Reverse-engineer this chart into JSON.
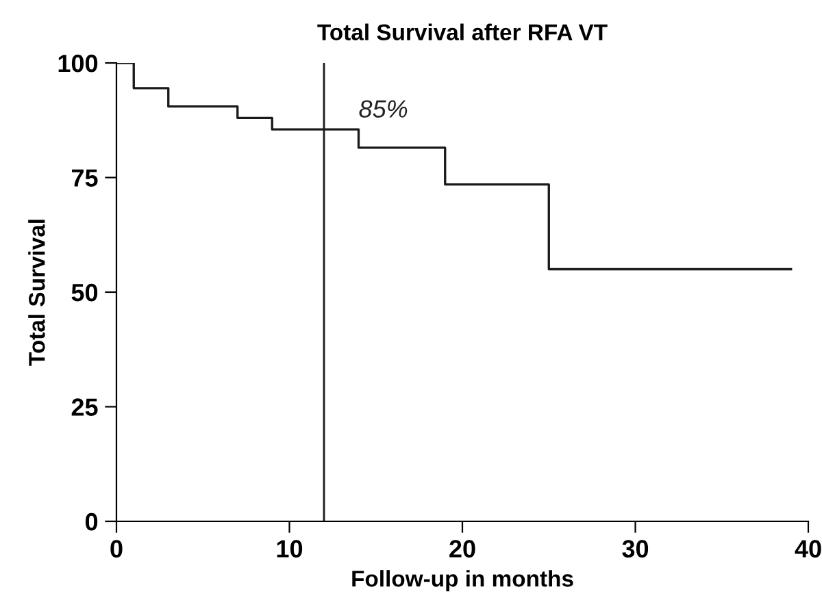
{
  "chart_data": {
    "type": "step",
    "title": "Total Survival after RFA VT",
    "xlabel": "Follow-up in months",
    "ylabel": "Total Survival",
    "x": [
      0,
      1,
      3,
      7,
      9,
      14,
      19,
      25,
      39
    ],
    "series": [
      {
        "color": "#1a1a1a",
        "values": [
          100,
          94.5,
          90.5,
          88,
          85.5,
          81.5,
          73.5,
          55,
          55
        ]
      }
    ],
    "xlim": [
      0,
      40
    ],
    "xticks": [
      0,
      10,
      20,
      30,
      40
    ],
    "ylim": [
      0,
      100
    ],
    "yticks": [
      0,
      25,
      50,
      75,
      100
    ],
    "ref_lines": [
      {
        "axis": "x",
        "value": 12,
        "color": "#1a1a1a"
      }
    ],
    "annotations": [
      {
        "text": "85%",
        "x": 14,
        "y": 87
      }
    ],
    "grid": false,
    "legend": false
  }
}
